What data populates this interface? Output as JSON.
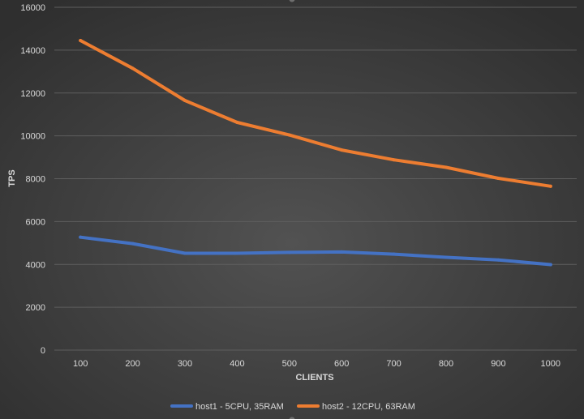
{
  "chart_data": {
    "type": "line",
    "title": "",
    "xlabel": "CLIENTS",
    "ylabel": "TPS",
    "categories": [
      "100",
      "200",
      "300",
      "400",
      "500",
      "600",
      "700",
      "800",
      "900",
      "1000"
    ],
    "ylim": [
      0,
      16000
    ],
    "yticks": [
      "0",
      "2000",
      "4000",
      "6000",
      "8000",
      "10000",
      "12000",
      "14000",
      "16000"
    ],
    "grid": true,
    "legend_position": "bottom",
    "series": [
      {
        "name": "host1 - 5CPU, 35RAM",
        "color": "#4472c4",
        "values": [
          5270,
          4970,
          4520,
          4520,
          4560,
          4580,
          4480,
          4330,
          4210,
          3990
        ]
      },
      {
        "name": "host2 - 12CPU, 63RAM",
        "color": "#ed7d31",
        "values": [
          14450,
          13150,
          11650,
          10630,
          10040,
          9340,
          8880,
          8530,
          8020,
          7650
        ]
      }
    ]
  }
}
